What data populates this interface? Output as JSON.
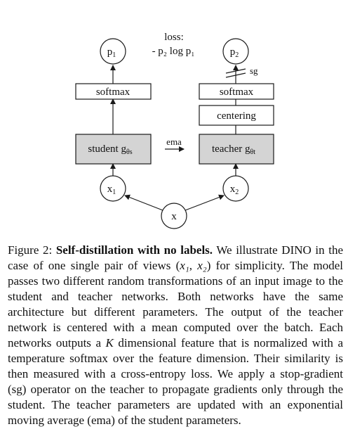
{
  "diagram": {
    "loss_title": "loss:",
    "loss_formula": "- p₂ log p₁",
    "p1": {
      "base": "p",
      "sub": "1"
    },
    "p2": {
      "base": "p",
      "sub": "2"
    },
    "sg_label": "sg",
    "softmax_left": "softmax",
    "softmax_right": "softmax",
    "centering": "centering",
    "student": {
      "text": "student g",
      "sub": "θs"
    },
    "teacher": {
      "text": "teacher g",
      "sub": "θt"
    },
    "ema_label": "ema",
    "x1": {
      "base": "x",
      "sub": "1"
    },
    "x2": {
      "base": "x",
      "sub": "2"
    },
    "x": "x",
    "colors": {
      "network_fill": "#d4d4d4",
      "stroke": "#1a1a1a"
    }
  },
  "caption": {
    "figure_label": "Figure 2:",
    "bold_title": "Self-distillation with no labels.",
    "part1": "We illustrate DINO in the case of one single pair of views (",
    "math_x1": "x₁",
    "comma": ", ",
    "math_x2": "x₂",
    "part2": ") for simplicity. The model passes two different random transformations of an input image to the student and teacher networks. Both networks have the same architecture but different parameters. The output of the teacher network is centered with a mean computed over the batch. Each networks outputs a ",
    "math_K": "K",
    "part3": " dimensional feature that is normalized with a temperature softmax over the feature dimension. Their similarity is then measured with a cross-entropy loss. We apply a stop-gradient (sg) operator on the teacher to propagate gradients only through the student. The teacher parameters are updated with an exponential moving average (ema) of the student parameters."
  }
}
